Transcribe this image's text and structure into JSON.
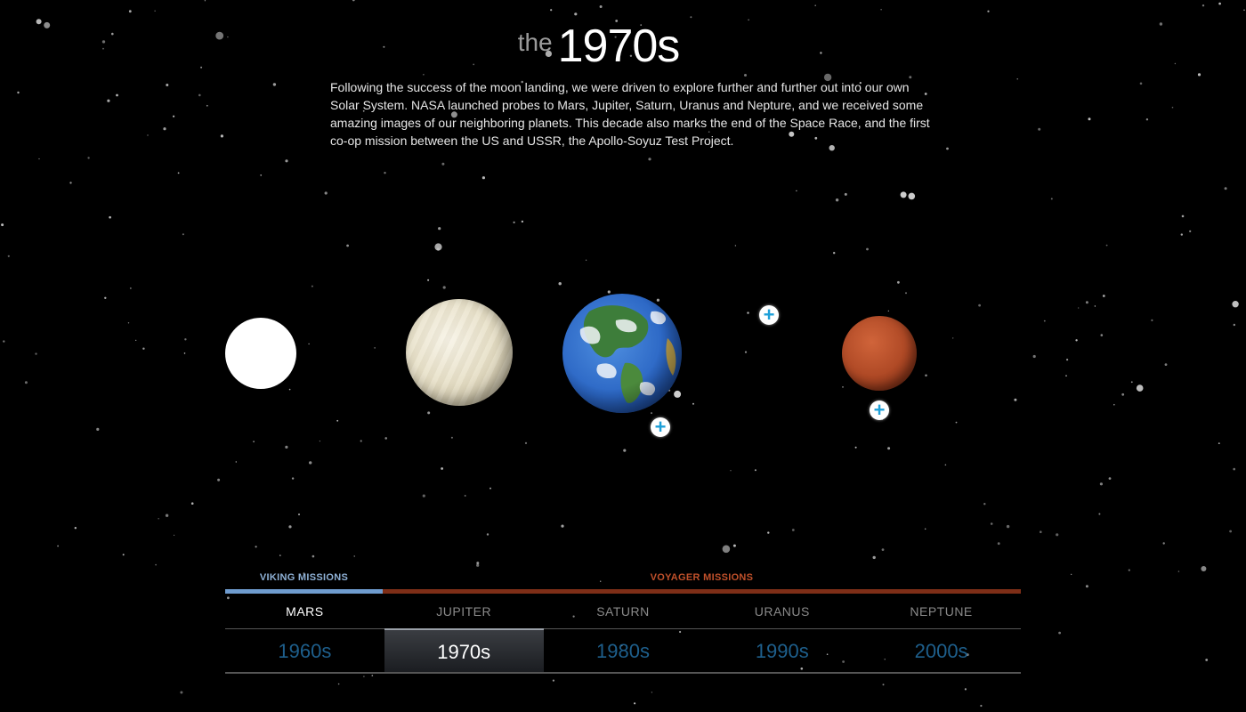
{
  "header": {
    "prefix": "the",
    "decade": "1970s"
  },
  "intro": "Following the success of the moon landing, we were driven to explore further and further out into our own Solar System. NASA launched probes to Mars, Jupiter, Saturn, Uranus and Nepture, and we received some amazing images of our neighboring planets. This decade also marks the end of the Space Race, and the first co-op mission between the US and USSR, the Apollo-Soyuz Test Project.",
  "scene": {
    "bodies": [
      "moon",
      "venus",
      "earth",
      "mars"
    ],
    "plus_icon": "+"
  },
  "timeline": {
    "missions": [
      {
        "label": "VIKING MISSIONS",
        "color": "#6f9ccf"
      },
      {
        "label": "VOYAGER MISSIONS",
        "color": "#7e2e17"
      }
    ],
    "planets": [
      {
        "label": "MARS",
        "active": true
      },
      {
        "label": "JUPITER",
        "active": false
      },
      {
        "label": "SATURN",
        "active": false
      },
      {
        "label": "URANUS",
        "active": false
      },
      {
        "label": "NEPTUNE",
        "active": false
      }
    ],
    "decades": [
      {
        "label": "1960s",
        "active": false
      },
      {
        "label": "1970s",
        "active": true
      },
      {
        "label": "1980s",
        "active": false
      },
      {
        "label": "1990s",
        "active": false
      },
      {
        "label": "2000s",
        "active": false
      }
    ]
  },
  "colors": {
    "background": "#000000",
    "inactive_decade": "#1e5f8c",
    "plus_icon": "#1ea0d8"
  }
}
